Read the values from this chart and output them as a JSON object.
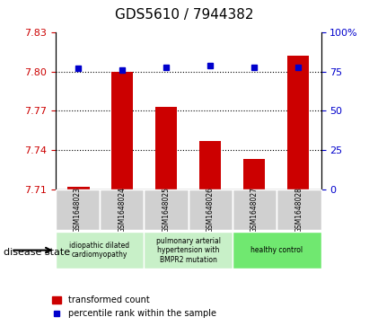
{
  "title": "GDS5610 / 7944382",
  "categories": [
    "GSM1648023",
    "GSM1648024",
    "GSM1648025",
    "GSM1648026",
    "GSM1648027",
    "GSM1648028"
  ],
  "bar_values": [
    7.712,
    7.8,
    7.773,
    7.747,
    7.733,
    7.812
  ],
  "percentile_values": [
    77,
    76,
    78,
    79,
    78,
    78
  ],
  "ylim_left": [
    7.71,
    7.83
  ],
  "ylim_right": [
    0,
    100
  ],
  "yticks_left": [
    7.71,
    7.74,
    7.77,
    7.8,
    7.83
  ],
  "ytick_labels_left": [
    "7.71",
    "7.74",
    "7.77",
    "7.80",
    "7.83"
  ],
  "yticks_right": [
    0,
    25,
    50,
    75,
    100
  ],
  "ytick_labels_right": [
    "0",
    "25",
    "50",
    "75",
    "100%"
  ],
  "bar_color": "#cc0000",
  "percentile_color": "#0000cc",
  "bg_color": "#d3d3d3",
  "disease_groups": [
    {
      "label": "idiopathic dilated\ncardiomyopathy",
      "indices": [
        0,
        1
      ],
      "color": "#c8f0c8"
    },
    {
      "label": "pulmonary arterial\nhypertension with\nBMPR2 mutation",
      "indices": [
        2,
        3
      ],
      "color": "#c8f0c8"
    },
    {
      "label": "healthy control",
      "indices": [
        4,
        5
      ],
      "color": "#70e870"
    }
  ],
  "legend_bar_label": "transformed count",
  "legend_percentile_label": "percentile rank within the sample",
  "disease_state_label": "disease state",
  "dotted_line_color": "#000000",
  "dotted_yticks": [
    7.74,
    7.77,
    7.8
  ]
}
